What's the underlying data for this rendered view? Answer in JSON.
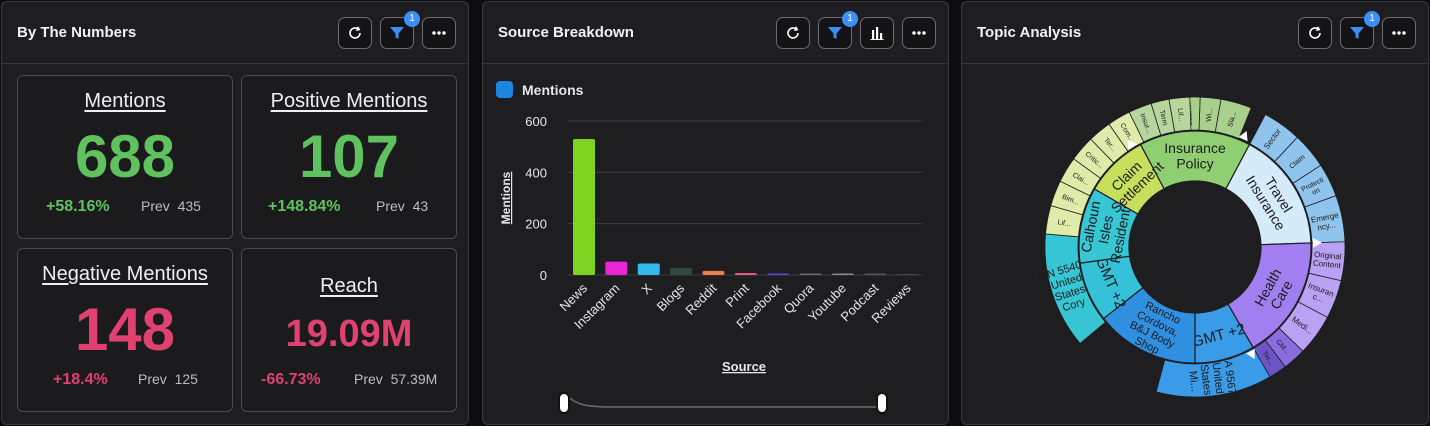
{
  "colors": {
    "green": "#5fc25f",
    "red": "#e0416f",
    "accent": "#3d8ff5"
  },
  "numbers_panel": {
    "title": "By The Numbers",
    "filter_badge": "1",
    "kpis": [
      {
        "label": "Mentions",
        "value": "688",
        "change": "+58.16%",
        "prev_label": "Prev",
        "prev_value": "435",
        "tone": "green"
      },
      {
        "label": "Positive Mentions",
        "value": "107",
        "change": "+148.84%",
        "prev_label": "Prev",
        "prev_value": "43",
        "tone": "green"
      },
      {
        "label": "Negative Mentions",
        "value": "148",
        "change": "+18.4%",
        "prev_label": "Prev",
        "prev_value": "125",
        "tone": "red"
      },
      {
        "label": "Reach",
        "value": "19.09M",
        "change": "-66.73%",
        "prev_label": "Prev",
        "prev_value": "57.39M",
        "tone": "red"
      }
    ]
  },
  "source_panel": {
    "title": "Source Breakdown",
    "filter_badge": "1"
  },
  "topic_panel": {
    "title": "Topic Analysis",
    "filter_badge": "1",
    "inner_labels": [
      "Insurance Policy",
      "Travel Insurance",
      "Health Care",
      "GMT +2",
      "Rancho Cordova, B&J Body Shop",
      "GMT +2",
      "Calhoun Isles Residents",
      "Claim Settlement"
    ],
    "outer_labels": [
      "Bim...",
      "Busin...",
      "Wi...",
      "Sla...",
      "Sector",
      "Claim",
      "Protecti on",
      "Emerge ncy...",
      "Original Content",
      "Insuran c...",
      "Medi...",
      "GM...",
      "Ter...",
      "CA 95670 United States Mi...",
      "MN 55401 United States Cory",
      "Lif...",
      "Bim...",
      "Clai...",
      "Critic...",
      "Ter...",
      "Com...",
      "Insur...",
      "Term",
      "Lif..."
    ]
  },
  "chart_data": {
    "type": "bar",
    "title": "Source Breakdown",
    "legend": [
      "Mentions"
    ],
    "xlabel": "Source",
    "ylabel": "Mentions",
    "ylim": [
      0,
      600
    ],
    "yticks": [
      0,
      200,
      400,
      600
    ],
    "categories": [
      "News",
      "Instagram",
      "X",
      "Blogs",
      "Reddit",
      "Print",
      "Facebook",
      "Quora",
      "Youtube",
      "Podcast",
      "Reviews"
    ],
    "values": [
      530,
      52,
      45,
      28,
      16,
      8,
      4,
      2,
      2,
      1,
      0
    ],
    "bar_colors": [
      "#7ed321",
      "#e925d8",
      "#35b8f0",
      "#2f4a3c",
      "#f07d4a",
      "#e05a82",
      "#5b4ad6",
      "#6b6b70",
      "#8a8a8f",
      "#55555a",
      "#55555a"
    ]
  }
}
